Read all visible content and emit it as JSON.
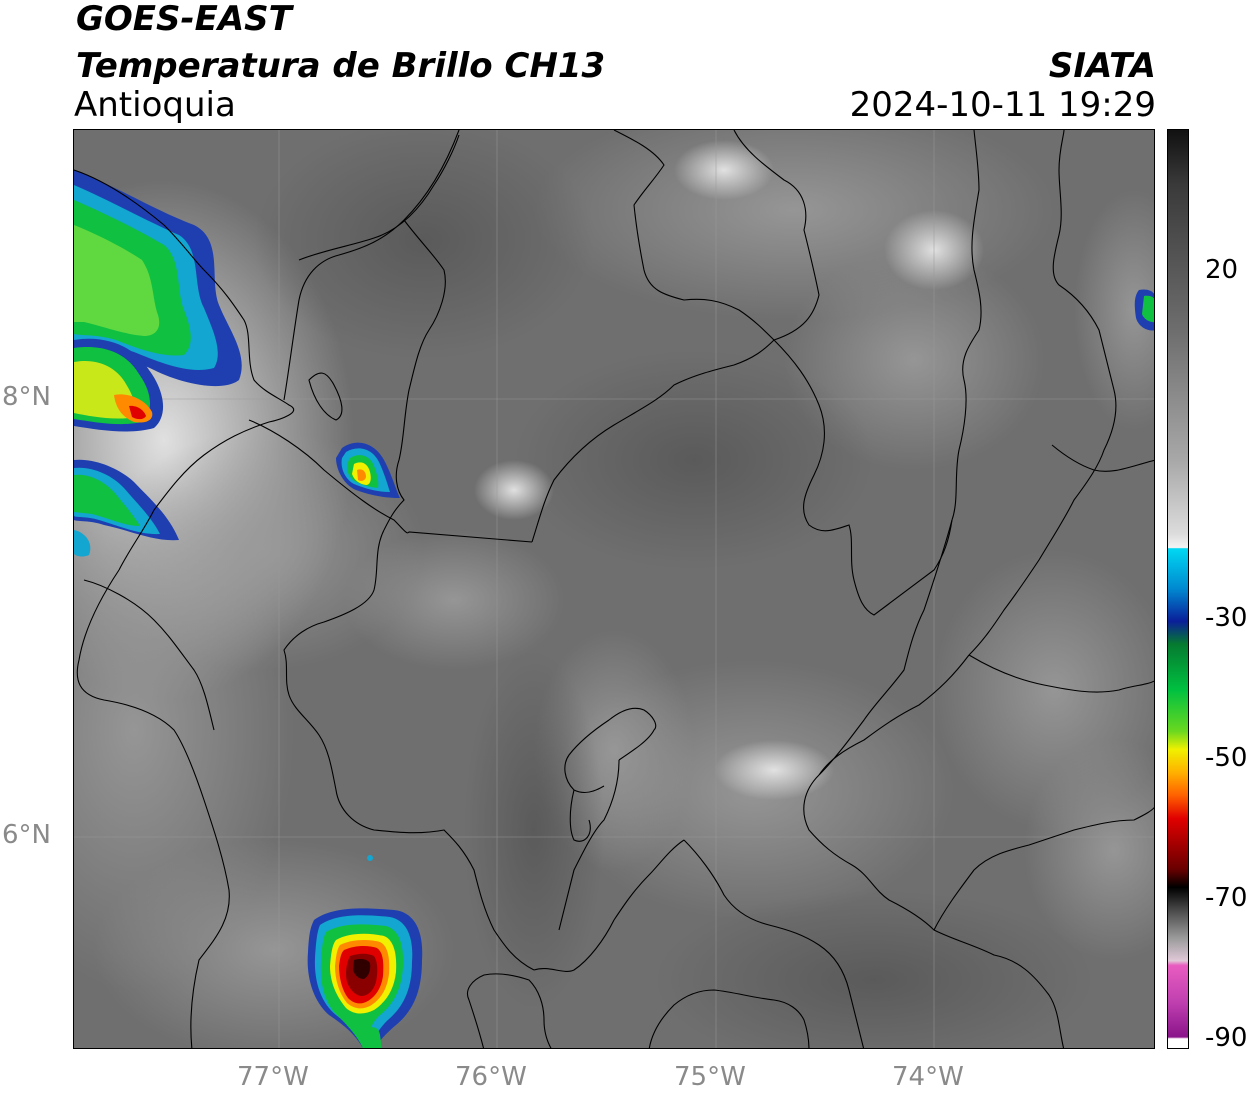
{
  "header": {
    "satellite": "GOES-EAST",
    "product": "Temperatura de Brillo CH13",
    "region": "Antioquia",
    "source": "SIATA",
    "datetime": "2024-10-11 19:29"
  },
  "map": {
    "lon_ticks": [
      "77°W",
      "76°W",
      "75°W",
      "74°W"
    ],
    "lat_ticks": [
      "8°N",
      "6°N"
    ],
    "lon_range": [
      -77.95,
      -73.0
    ],
    "lat_range": [
      4.95,
      9.15
    ],
    "colors": {
      "background_gray": "#6e6e6e",
      "border": "#000000"
    }
  },
  "colorbar": {
    "ticks": [
      "20",
      "-30",
      "-50",
      "-70",
      "-90"
    ],
    "colors": {
      "warm_top": "#111111",
      "warm_mid": "#7a7a7a",
      "neutral": "#f2f2f2",
      "cyan": "#00d4f0",
      "blue": "#0a1a9a",
      "green": "#00c83a",
      "yellow": "#f0f000",
      "orange": "#ff8a00",
      "red": "#e00000",
      "dark_red": "#6a0000",
      "black": "#000000",
      "pink": "#e85cc0",
      "purple": "#9a1a9a"
    }
  }
}
